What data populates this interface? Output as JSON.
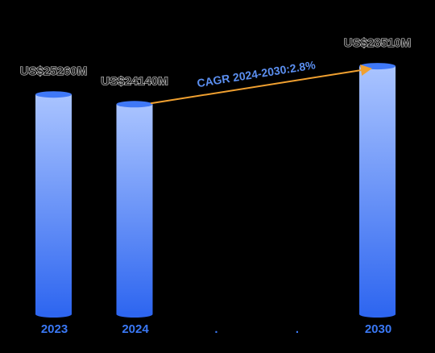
{
  "chart_data": {
    "type": "bar",
    "categories": [
      "2023",
      "2024",
      ".",
      ".",
      "2030"
    ],
    "values": [
      25260,
      24140,
      null,
      null,
      28510
    ],
    "value_labels": [
      "US$25260M",
      "US$24140M",
      "",
      "",
      "US$28510M"
    ],
    "annotation": {
      "text": "CAGR 2024-2030:2.8%",
      "from_category": "2024",
      "to_category": "2030"
    },
    "title": "",
    "xlabel": "",
    "ylabel": "",
    "grid": false,
    "legend": "none"
  },
  "colors": {
    "background": "#000000",
    "bar_top": "#aac4ff",
    "bar_bottom": "#2e66f0",
    "bar_cap": "#3f78f7",
    "category_text": "#3a78f5",
    "annotation_text": "#5b8ff0",
    "arrow": "#f0a030"
  }
}
